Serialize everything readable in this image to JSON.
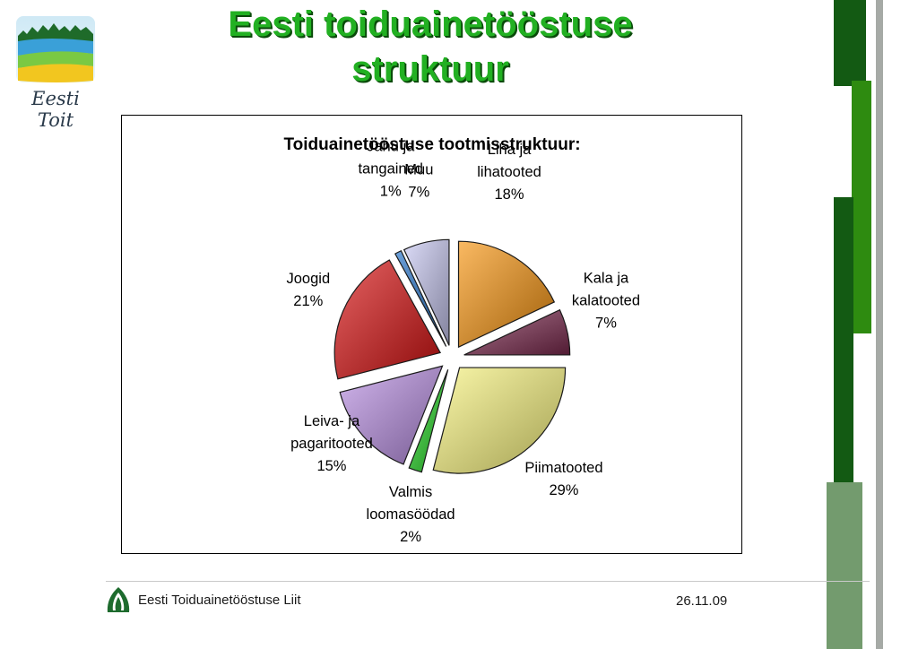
{
  "logo": {
    "text": "Eesti Toit"
  },
  "slide": {
    "title_line1": "Eesti toiduainetööstuse",
    "title_line2": "struktuur"
  },
  "footer": {
    "org": "Eesti Toiduainetööstuse Liit",
    "date": "26.11.09"
  },
  "colors": {
    "title": "#22b022",
    "deco_dark": "#135a13",
    "deco_bright": "#2e8b10",
    "deco_muted": "#739b6e",
    "deco_gray": "#a6aaa6"
  },
  "chart_data": {
    "type": "pie",
    "title": "Toiduainetööstuse tootmisstruktuur:",
    "slices": [
      {
        "label_lines": [
          "Liha ja",
          "lihatooted"
        ],
        "percent_text": "18%",
        "value": 18,
        "color": "#f8940e"
      },
      {
        "label_lines": [
          "Kala ja",
          "kalatooted"
        ],
        "percent_text": "7%",
        "value": 7,
        "color": "#7d2a4f"
      },
      {
        "label_lines": [
          "Piimatooted"
        ],
        "percent_text": "29%",
        "value": 29,
        "color": "#f9f47c"
      },
      {
        "label_lines": [
          "Valmis",
          "loomasöödad"
        ],
        "percent_text": "2%",
        "value": 2,
        "color": "#22d622"
      },
      {
        "label_lines": [
          "Leiva- ja",
          "pagaritooted"
        ],
        "percent_text": "15%",
        "value": 15,
        "color": "#b98ee4"
      },
      {
        "label_lines": [
          "Joogid"
        ],
        "percent_text": "21%",
        "value": 21,
        "color": "#d90f0f"
      },
      {
        "label_lines": [
          "Jahu ja",
          "tangained"
        ],
        "percent_text": "1%",
        "value": 1,
        "color": "#1f6ec7"
      },
      {
        "label_lines": [
          "Muu"
        ],
        "percent_text": "7%",
        "value": 7,
        "color": "#c8c8f2"
      }
    ]
  }
}
